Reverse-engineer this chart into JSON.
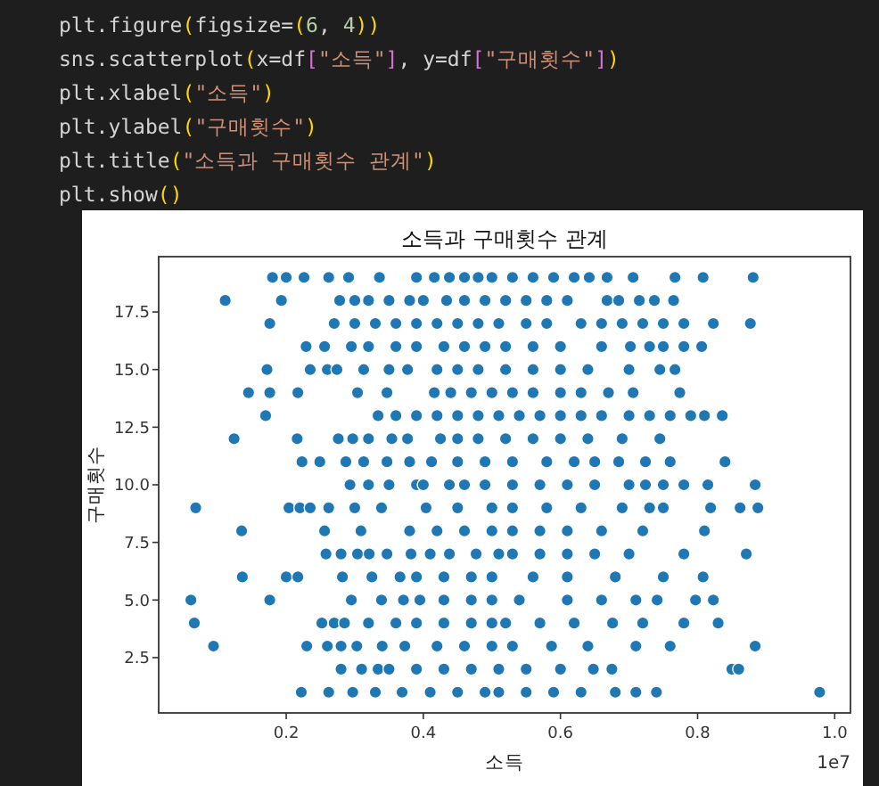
{
  "chart_data": {
    "type": "scatter",
    "title": "소득과 구매횟수 관계",
    "xlabel": "소득",
    "ylabel": "구매횟수",
    "annotations": [
      "plt.figure(figsize=(6, 4))",
      "sns.scatterplot(x=df[\"소득\"], y=df[\"구매횟수\"])",
      "plt.xlabel(\"소득\")",
      "plt.ylabel(\"구매횟수\")",
      "plt.title(\"소득과 구매횟수 관계\")",
      "plt.show()",
      "1e7"
    ],
    "xlim": [
      0.014,
      1.023
    ],
    "ylim": [
      0.1,
      19.9
    ],
    "xticks": [
      0.2,
      0.4,
      0.6,
      0.8,
      {
        "value": 1,
        "label": "1.0"
      }
    ],
    "yticks": [
      2.5,
      {
        "value": 5,
        "label": "5.0"
      },
      7.5,
      {
        "value": 10,
        "label": "10.0"
      },
      12.5,
      {
        "value": 15,
        "label": "15.0"
      },
      17.5
    ],
    "marker": "circle",
    "series": [
      {
        "color": "#1f77b4",
        "x": [
          0.18,
          0.2,
          0.226,
          0.262,
          0.291,
          0.336,
          0.39,
          0.416,
          0.438,
          0.46,
          0.48,
          0.5,
          0.53,
          0.56,
          0.59,
          0.62,
          0.642,
          0.668,
          0.706,
          0.767,
          0.808,
          0.881,
          0.111,
          0.193,
          0.278,
          0.3,
          0.32,
          0.35,
          0.38,
          0.4,
          0.434,
          0.46,
          0.49,
          0.52,
          0.55,
          0.58,
          0.61,
          0.668,
          0.685,
          0.715,
          0.737,
          0.765,
          0.176,
          0.27,
          0.3,
          0.33,
          0.36,
          0.39,
          0.42,
          0.45,
          0.48,
          0.51,
          0.55,
          0.58,
          0.63,
          0.66,
          0.69,
          0.72,
          0.75,
          0.78,
          0.823,
          0.877,
          0.229,
          0.256,
          0.295,
          0.32,
          0.36,
          0.39,
          0.43,
          0.46,
          0.49,
          0.52,
          0.56,
          0.6,
          0.66,
          0.702,
          0.73,
          0.75,
          0.78,
          0.806,
          0.172,
          0.235,
          0.26,
          0.274,
          0.313,
          0.35,
          0.377,
          0.42,
          0.45,
          0.48,
          0.52,
          0.56,
          0.6,
          0.64,
          0.7,
          0.745,
          0.767,
          0.145,
          0.176,
          0.217,
          0.304,
          0.347,
          0.416,
          0.44,
          0.47,
          0.5,
          0.53,
          0.56,
          0.6,
          0.63,
          0.67,
          0.706,
          0.774,
          0.17,
          0.334,
          0.36,
          0.39,
          0.42,
          0.45,
          0.48,
          0.51,
          0.54,
          0.57,
          0.6,
          0.63,
          0.66,
          0.7,
          0.73,
          0.76,
          0.79,
          0.81,
          0.836,
          0.124,
          0.216,
          0.276,
          0.297,
          0.32,
          0.354,
          0.377,
          0.425,
          0.45,
          0.48,
          0.52,
          0.56,
          0.6,
          0.64,
          0.69,
          0.745,
          0.223,
          0.249,
          0.287,
          0.313,
          0.347,
          0.38,
          0.412,
          0.45,
          0.49,
          0.53,
          0.58,
          0.62,
          0.65,
          0.685,
          0.724,
          0.76,
          0.84,
          0.293,
          0.32,
          0.35,
          0.39,
          0.4,
          0.438,
          0.46,
          0.49,
          0.53,
          0.57,
          0.61,
          0.65,
          0.7,
          0.724,
          0.75,
          0.78,
          0.815,
          0.884,
          0.068,
          0.204,
          0.22,
          0.235,
          0.262,
          0.3,
          0.339,
          0.404,
          0.45,
          0.5,
          0.53,
          0.58,
          0.63,
          0.69,
          0.73,
          0.75,
          0.819,
          0.862,
          0.888,
          0.135,
          0.256,
          0.309,
          0.38,
          0.42,
          0.46,
          0.5,
          0.53,
          0.57,
          0.61,
          0.66,
          0.72,
          0.81,
          0.258,
          0.28,
          0.304,
          0.321,
          0.347,
          0.382,
          0.41,
          0.438,
          0.477,
          0.51,
          0.53,
          0.57,
          0.61,
          0.65,
          0.7,
          0.78,
          0.871,
          0.136,
          0.2,
          0.217,
          0.282,
          0.325,
          0.366,
          0.39,
          0.43,
          0.47,
          0.5,
          0.56,
          0.61,
          0.68,
          0.75,
          0.808,
          0.061,
          0.176,
          0.295,
          0.339,
          0.371,
          0.395,
          0.43,
          0.47,
          0.5,
          0.54,
          0.61,
          0.66,
          0.71,
          0.741,
          0.797,
          0.823,
          0.066,
          0.252,
          0.27,
          0.285,
          0.32,
          0.36,
          0.39,
          0.43,
          0.47,
          0.5,
          0.52,
          0.57,
          0.62,
          0.676,
          0.72,
          0.78,
          0.83,
          0.094,
          0.23,
          0.26,
          0.28,
          0.303,
          0.34,
          0.373,
          0.42,
          0.46,
          0.5,
          0.53,
          0.587,
          0.64,
          0.71,
          0.76,
          0.884,
          0.28,
          0.31,
          0.334,
          0.35,
          0.39,
          0.43,
          0.47,
          0.51,
          0.55,
          0.6,
          0.648,
          0.675,
          0.85,
          0.86,
          0.222,
          0.262,
          0.297,
          0.33,
          0.369,
          0.41,
          0.45,
          0.49,
          0.51,
          0.55,
          0.59,
          0.63,
          0.68,
          0.71,
          0.74,
          0.978
        ],
        "values": [
          19,
          19,
          19,
          19,
          19,
          19,
          19,
          19,
          19,
          19,
          19,
          19,
          19,
          19,
          19,
          19,
          19,
          19,
          19,
          19,
          19,
          19,
          18,
          18,
          18,
          18,
          18,
          18,
          18,
          18,
          18,
          18,
          18,
          18,
          18,
          18,
          18,
          18,
          18,
          18,
          18,
          18,
          17,
          17,
          17,
          17,
          17,
          17,
          17,
          17,
          17,
          17,
          17,
          17,
          17,
          17,
          17,
          17,
          17,
          17,
          17,
          17,
          16,
          16,
          16,
          16,
          16,
          16,
          16,
          16,
          16,
          16,
          16,
          16,
          16,
          16,
          16,
          16,
          16,
          16,
          15,
          15,
          15,
          15,
          15,
          15,
          15,
          15,
          15,
          15,
          15,
          15,
          15,
          15,
          15,
          15,
          15,
          14,
          14,
          14,
          14,
          14,
          14,
          14,
          14,
          14,
          14,
          14,
          14,
          14,
          14,
          14,
          14,
          13,
          13,
          13,
          13,
          13,
          13,
          13,
          13,
          13,
          13,
          13,
          13,
          13,
          13,
          13,
          13,
          13,
          13,
          13,
          12,
          12,
          12,
          12,
          12,
          12,
          12,
          12,
          12,
          12,
          12,
          12,
          12,
          12,
          12,
          12,
          11,
          11,
          11,
          11,
          11,
          11,
          11,
          11,
          11,
          11,
          11,
          11,
          11,
          11,
          11,
          11,
          11,
          10,
          10,
          10,
          10,
          10,
          10,
          10,
          10,
          10,
          10,
          10,
          10,
          10,
          10,
          10,
          10,
          10,
          10,
          9,
          9,
          9,
          9,
          9,
          9,
          9,
          9,
          9,
          9,
          9,
          9,
          9,
          9,
          9,
          9,
          9,
          9,
          9,
          8,
          8,
          8,
          8,
          8,
          8,
          8,
          8,
          8,
          8,
          8,
          8,
          8,
          7,
          7,
          7,
          7,
          7,
          7,
          7,
          7,
          7,
          7,
          7,
          7,
          7,
          7,
          7,
          7,
          7,
          6,
          6,
          6,
          6,
          6,
          6,
          6,
          6,
          6,
          6,
          6,
          6,
          6,
          6,
          6,
          5,
          5,
          5,
          5,
          5,
          5,
          5,
          5,
          5,
          5,
          5,
          5,
          5,
          5,
          5,
          5,
          4,
          4,
          4,
          4,
          4,
          4,
          4,
          4,
          4,
          4,
          4,
          4,
          4,
          4,
          4,
          4,
          4,
          3,
          3,
          3,
          3,
          3,
          3,
          3,
          3,
          3,
          3,
          3,
          3,
          3,
          3,
          3,
          3,
          2,
          2,
          2,
          2,
          2,
          2,
          2,
          2,
          2,
          2,
          2,
          2,
          2,
          2,
          1,
          1,
          1,
          1,
          1,
          1,
          1,
          1,
          1,
          1,
          1,
          1,
          1,
          1,
          1,
          1
        ]
      }
    ]
  }
}
